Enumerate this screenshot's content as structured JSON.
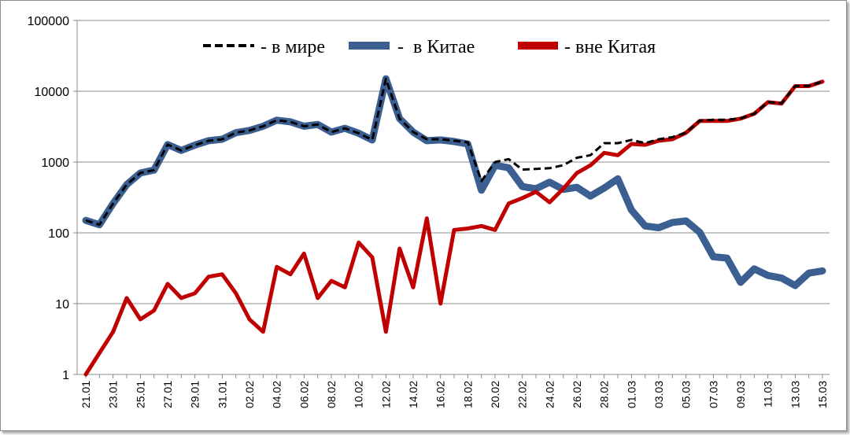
{
  "chart_data": {
    "type": "line",
    "title": "",
    "xlabel": "",
    "ylabel": "",
    "y_scale": "log",
    "ylim": [
      1,
      100000
    ],
    "y_ticks": [
      "1",
      "10",
      "100",
      "1000",
      "10000",
      "100000"
    ],
    "grid": "horizontal",
    "legend_placement": "top-center",
    "x": [
      "21.01",
      "22.01",
      "23.01",
      "24.01",
      "25.01",
      "26.01",
      "27.01",
      "28.01",
      "29.01",
      "30.01",
      "31.01",
      "01.02",
      "02.02",
      "03.02",
      "04.02",
      "05.02",
      "06.02",
      "07.02",
      "08.02",
      "09.02",
      "10.02",
      "11.02",
      "12.02",
      "13.02",
      "14.02",
      "15.02",
      "16.02",
      "17.02",
      "18.02",
      "19.02",
      "20.02",
      "21.02",
      "22.02",
      "23.02",
      "24.02",
      "25.02",
      "26.02",
      "27.02",
      "28.02",
      "29.02",
      "01.03",
      "02.03",
      "03.03",
      "04.03",
      "05.03",
      "06.03",
      "07.03",
      "08.03",
      "09.03",
      "10.03",
      "11.03",
      "12.03",
      "13.03",
      "14.03",
      "15.03"
    ],
    "x_tick_labels": [
      "21.01",
      "23.01",
      "25.01",
      "27.01",
      "29.01",
      "31.01",
      "02.02",
      "04.02",
      "06.02",
      "08.02",
      "10.02",
      "12.02",
      "14.02",
      "16.02",
      "18.02",
      "20.02",
      "22.02",
      "24.02",
      "26.02",
      "28.02",
      "01.03",
      "03.03",
      "05.03",
      "07.03",
      "09.03",
      "11.03",
      "13.03",
      "15.03"
    ],
    "series": [
      {
        "name": "- в мире",
        "color": "#000000",
        "style": "dashed",
        "values": [
          150,
          130,
          260,
          480,
          700,
          770,
          1770,
          1460,
          1740,
          2000,
          2100,
          2600,
          2800,
          3200,
          3900,
          3700,
          3200,
          3400,
          2650,
          3000,
          2550,
          2050,
          15000,
          4100,
          2650,
          2100,
          2100,
          2000,
          1900,
          540,
          1000,
          1100,
          780,
          800,
          820,
          900,
          1150,
          1250,
          1850,
          1850,
          2050,
          1850,
          2100,
          2250,
          2600,
          3850,
          3950,
          3950,
          4150,
          4800,
          7050,
          6750,
          11850,
          11900,
          13750
        ]
      },
      {
        "name": "-  в Китае",
        "color": "#3b5f91",
        "style": "solid",
        "values": [
          150,
          130,
          260,
          480,
          700,
          770,
          1770,
          1460,
          1740,
          2000,
          2100,
          2600,
          2800,
          3200,
          3900,
          3700,
          3200,
          3400,
          2650,
          3000,
          2550,
          2050,
          15000,
          4100,
          2650,
          2000,
          2050,
          1950,
          1800,
          400,
          900,
          830,
          450,
          420,
          520,
          410,
          440,
          330,
          430,
          580,
          210,
          125,
          118,
          140,
          147,
          102,
          46,
          44,
          20,
          31,
          25,
          23,
          18,
          27,
          29
        ]
      },
      {
        "name": "- вне Китая",
        "color": "#c00000",
        "style": "solid",
        "values": [
          1,
          2,
          4,
          12,
          6,
          8,
          19,
          12,
          14,
          24,
          26,
          14,
          6,
          4,
          33,
          26,
          51,
          12,
          21,
          17,
          73,
          45,
          4,
          60,
          17,
          160,
          10,
          110,
          115,
          125,
          110,
          260,
          310,
          380,
          270,
          420,
          700,
          900,
          1350,
          1250,
          1800,
          1750,
          2000,
          2100,
          2600,
          3800,
          3800,
          3800,
          4100,
          4800,
          7000,
          6700,
          11800,
          11800,
          13700
        ]
      }
    ]
  }
}
